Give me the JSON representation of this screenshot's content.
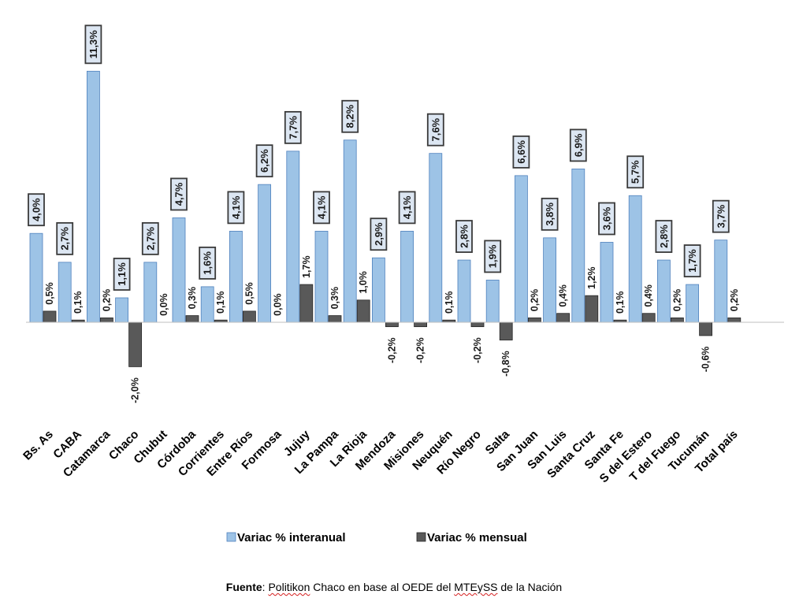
{
  "chart_data": {
    "type": "bar",
    "categories": [
      "Bs. As",
      "CABA",
      "Catamarca",
      "Chaco",
      "Chubut",
      "Córdoba",
      "Corrientes",
      "Entre Ríos",
      "Formosa",
      "Jujuy",
      "La Pampa",
      "La Rioja",
      "Mendoza",
      "Misiones",
      "Neuquén",
      "Río Negro",
      "Salta",
      "San Juan",
      "San Luis",
      "Santa Cruz",
      "Santa Fe",
      "S del Estero",
      "T del Fuego",
      "Tucumán",
      "Total país"
    ],
    "series": [
      {
        "name": "Variac % interanual",
        "color": "#9dc3e6",
        "values": [
          4.0,
          2.7,
          11.3,
          1.1,
          2.7,
          4.7,
          1.6,
          4.1,
          6.2,
          7.7,
          4.1,
          8.2,
          2.9,
          4.1,
          7.6,
          2.8,
          1.9,
          6.6,
          3.8,
          6.9,
          3.6,
          5.7,
          2.8,
          1.7,
          3.7
        ],
        "labels": [
          "4,0%",
          "2,7%",
          "11,3%",
          "1,1%",
          "2,7%",
          "4,7%",
          "1,6%",
          "4,1%",
          "6,2%",
          "7,7%",
          "4,1%",
          "8,2%",
          "2,9%",
          "4,1%",
          "7,6%",
          "2,8%",
          "1,9%",
          "6,6%",
          "3,8%",
          "6,9%",
          "3,6%",
          "5,7%",
          "2,8%",
          "1,7%",
          "3,7%"
        ]
      },
      {
        "name": "Variac % mensual",
        "color": "#595959",
        "values": [
          0.5,
          0.1,
          0.2,
          -2.0,
          0.0,
          0.3,
          0.1,
          0.5,
          0.0,
          1.7,
          0.3,
          1.0,
          -0.2,
          -0.2,
          0.1,
          -0.2,
          -0.8,
          0.2,
          0.4,
          1.2,
          0.1,
          0.4,
          0.2,
          -0.6,
          0.2
        ],
        "labels": [
          "0,5%",
          "0,1%",
          "0,2%",
          "-2,0%",
          "0,0%",
          "0,3%",
          "0,1%",
          "0,5%",
          "0,0%",
          "1,7%",
          "0,3%",
          "1,0%",
          "-0,2%",
          "-0,2%",
          "0,1%",
          "-0,2%",
          "-0,8%",
          "0,2%",
          "0,4%",
          "1,2%",
          "0,1%",
          "0,4%",
          "0,2%",
          "-0,6%",
          "0,2%"
        ]
      }
    ],
    "legend_position": "bottom",
    "grid": false
  },
  "source": {
    "label": "Fuente",
    "sep": ": ",
    "word1": "Politikon",
    "text1": " Chaco en base al OEDE del ",
    "word2": "MTEySS",
    "text2": " de la Nación"
  }
}
